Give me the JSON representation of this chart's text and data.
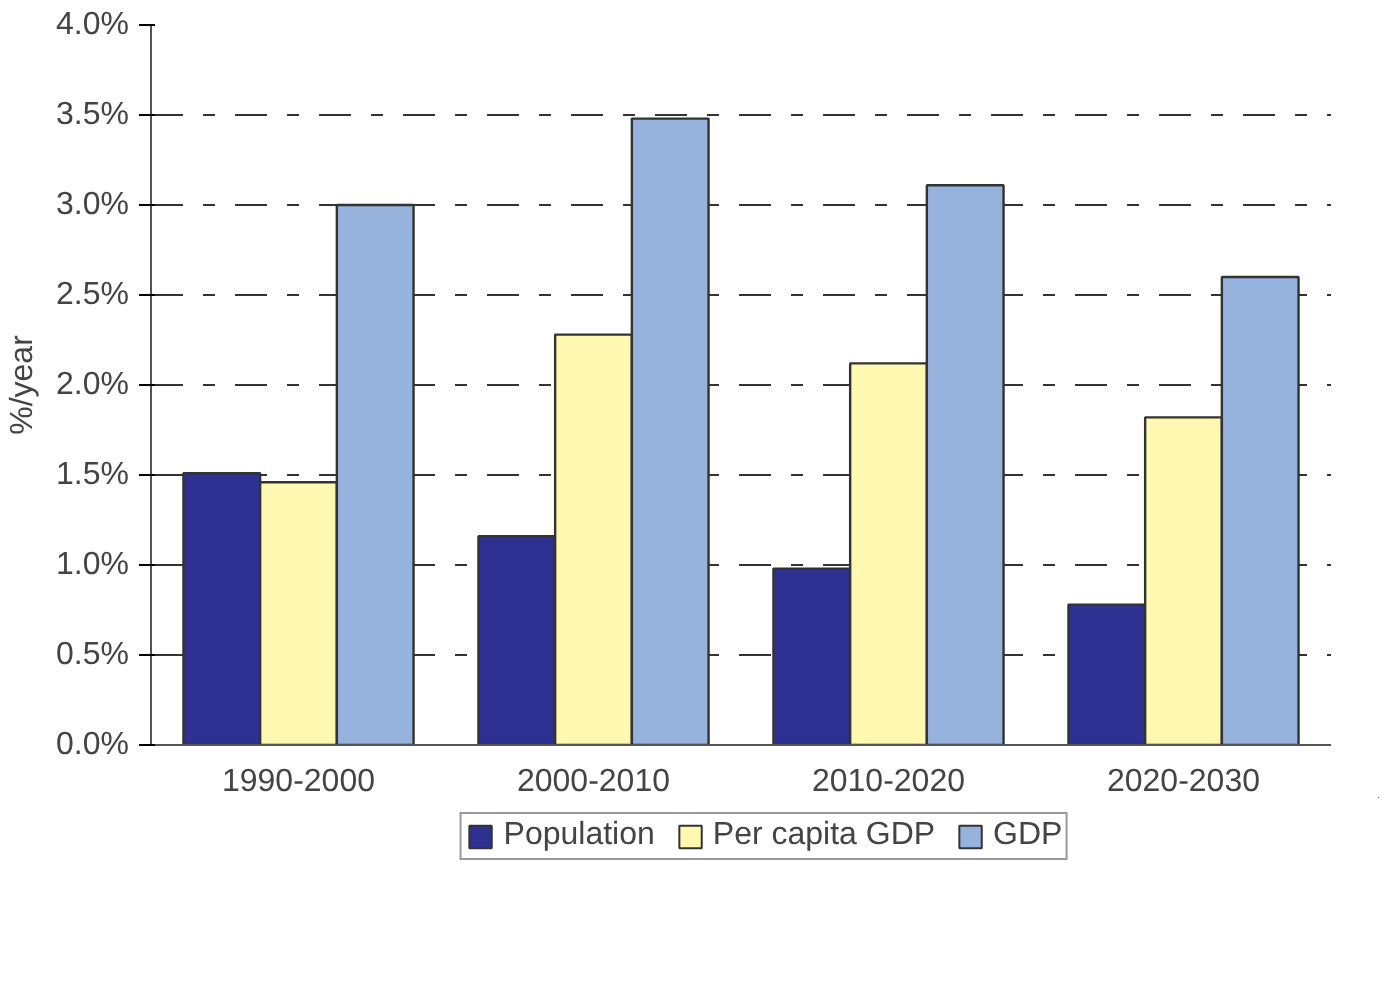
{
  "chart_data": {
    "type": "bar",
    "ylabel": "%/year",
    "categories": [
      "1990-2000",
      "2000-2010",
      "2010-2020",
      "2020-2030"
    ],
    "series": [
      {
        "name": "Population",
        "color": "#2e3192",
        "values": [
          1.51,
          1.16,
          0.98,
          0.78
        ]
      },
      {
        "name": "Per capita GDP",
        "color": "#fff8b0",
        "values": [
          1.46,
          2.28,
          2.12,
          1.82
        ]
      },
      {
        "name": "GDP",
        "color": "#95b3dc",
        "values": [
          3.0,
          3.48,
          3.11,
          2.6
        ]
      }
    ],
    "ylim": [
      0,
      4
    ],
    "yticks": [
      {
        "value": 0,
        "label": "0.0%"
      },
      {
        "value": 0.5,
        "label": "0.5%"
      },
      {
        "value": 1,
        "label": "1.0%"
      },
      {
        "value": 1.5,
        "label": "1.5%"
      },
      {
        "value": 2,
        "label": "2.0%"
      },
      {
        "value": 2.5,
        "label": "2.5%"
      },
      {
        "value": 3,
        "label": "3.0%"
      },
      {
        "value": 3.5,
        "label": "3.5%"
      },
      {
        "value": 4,
        "label": "4.0%"
      }
    ],
    "grid": "y",
    "legend": "bottom"
  }
}
